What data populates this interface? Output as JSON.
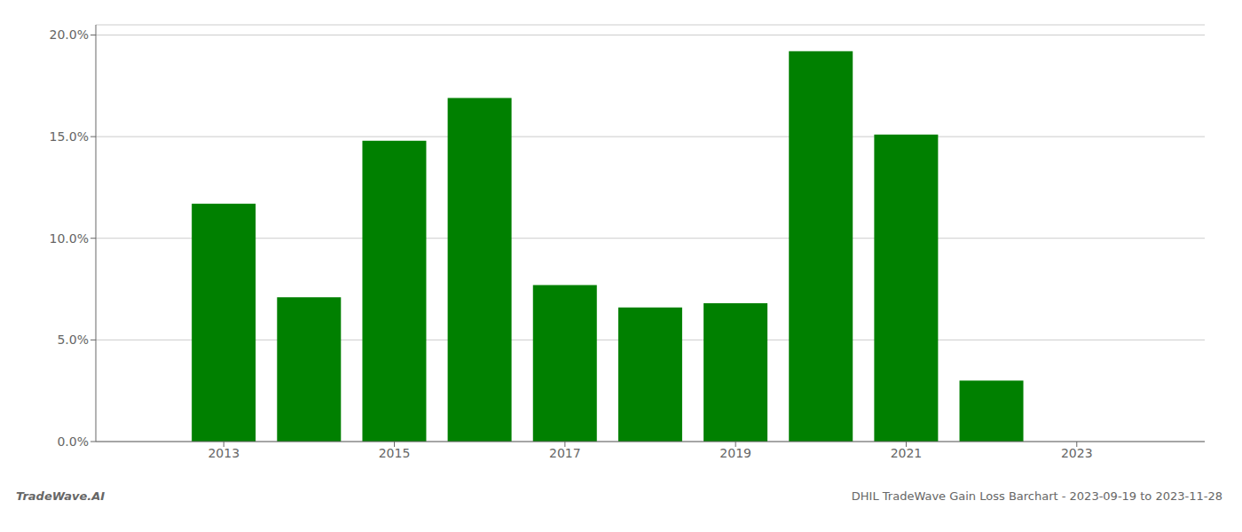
{
  "chart_data": {
    "type": "bar",
    "title": "DHIL TradeWave Gain Loss Barchart - 2023-09-19 to 2023-11-28",
    "annotations": [
      "TradeWave.AI"
    ],
    "x": [
      2013,
      2014,
      2015,
      2016,
      2017,
      2018,
      2019,
      2020,
      2021,
      2022,
      2023
    ],
    "values": [
      0.117,
      0.071,
      0.148,
      0.169,
      0.077,
      0.066,
      0.068,
      0.192,
      0.151,
      0.03,
      0.0
    ],
    "color": "#008000",
    "xlim": [
      2011.5,
      2024.5
    ],
    "xticks": [
      2013,
      2015,
      2017,
      2019,
      2021,
      2023
    ],
    "ylim": [
      0,
      0.205
    ],
    "yticks": [
      {
        "value": 0.0,
        "label": "0.0%"
      },
      {
        "value": 0.05,
        "label": "5.0%"
      },
      {
        "value": 0.1,
        "label": "10.0%"
      },
      {
        "value": 0.15,
        "label": "15.0%"
      },
      {
        "value": 0.2,
        "label": "20.0%"
      }
    ],
    "grid": true
  }
}
